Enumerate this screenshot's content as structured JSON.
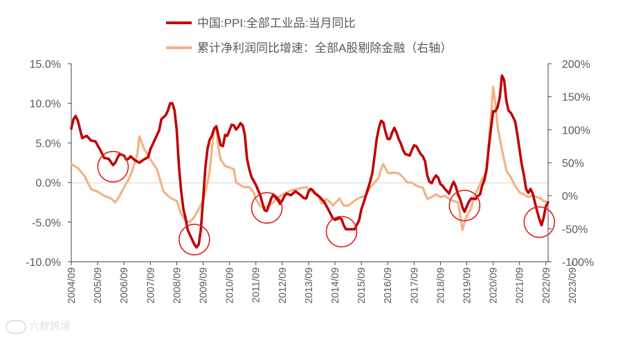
{
  "chart_data": {
    "type": "line",
    "series": [
      {
        "name": "中国:PPI:全部工业品:当月同比",
        "axis": "left",
        "color": "#c00000",
        "points": [
          [
            0,
            6.8
          ],
          [
            1,
            8.0
          ],
          [
            2,
            8.4
          ],
          [
            3,
            7.8
          ],
          [
            5,
            5.6
          ],
          [
            7,
            5.9
          ],
          [
            9,
            5.3
          ],
          [
            11,
            5.2
          ],
          [
            13,
            4.2
          ],
          [
            15,
            3.1
          ],
          [
            17,
            3.0
          ],
          [
            19,
            2.2
          ],
          [
            20,
            2.5
          ],
          [
            21,
            3.1
          ],
          [
            22,
            3.6
          ],
          [
            24,
            3.4
          ],
          [
            25,
            2.9
          ],
          [
            26,
            3.0
          ],
          [
            27,
            3.3
          ],
          [
            29,
            2.8
          ],
          [
            31,
            2.5
          ],
          [
            33,
            2.9
          ],
          [
            35,
            3.2
          ],
          [
            36,
            4.2
          ],
          [
            38,
            5.4
          ],
          [
            40,
            6.6
          ],
          [
            41,
            8.0
          ],
          [
            43,
            8.5
          ],
          [
            44,
            9.1
          ],
          [
            45,
            10.0
          ],
          [
            46,
            10.0
          ],
          [
            47,
            9.1
          ],
          [
            48,
            6.6
          ],
          [
            49,
            2.0
          ],
          [
            50,
            -1.1
          ],
          [
            51,
            -3.3
          ],
          [
            52,
            -4.5
          ],
          [
            53,
            -6.0
          ],
          [
            55,
            -7.2
          ],
          [
            56,
            -7.8
          ],
          [
            57,
            -8.2
          ],
          [
            58,
            -7.8
          ],
          [
            59,
            -5.9
          ],
          [
            60,
            -2.1
          ],
          [
            61,
            1.8
          ],
          [
            62,
            4.3
          ],
          [
            63,
            5.4
          ],
          [
            64,
            5.9
          ],
          [
            65,
            6.8
          ],
          [
            66,
            7.1
          ],
          [
            67,
            5.9
          ],
          [
            68,
            4.7
          ],
          [
            69,
            4.6
          ],
          [
            70,
            6.0
          ],
          [
            71,
            5.9
          ],
          [
            72,
            6.6
          ],
          [
            73,
            7.3
          ],
          [
            74,
            7.2
          ],
          [
            75,
            6.7
          ],
          [
            76,
            7.0
          ],
          [
            77,
            7.5
          ],
          [
            78,
            7.2
          ],
          [
            79,
            6.0
          ],
          [
            80,
            3.0
          ],
          [
            81,
            1.7
          ],
          [
            82,
            0.7
          ],
          [
            84,
            -0.3
          ],
          [
            86,
            -1.6
          ],
          [
            87,
            -2.6
          ],
          [
            88,
            -3.5
          ],
          [
            89,
            -3.6
          ],
          [
            90,
            -2.8
          ],
          [
            91,
            -2.0
          ],
          [
            92,
            -1.5
          ],
          [
            93,
            -1.9
          ],
          [
            94,
            -2.2
          ],
          [
            95,
            -2.7
          ],
          [
            96,
            -2.3
          ],
          [
            97,
            -1.7
          ],
          [
            98,
            -1.4
          ],
          [
            100,
            -1.6
          ],
          [
            102,
            -1.1
          ],
          [
            104,
            -1.5
          ],
          [
            106,
            -2.0
          ],
          [
            107,
            -2.0
          ],
          [
            108,
            -1.1
          ],
          [
            109,
            -0.8
          ],
          [
            110,
            -1.0
          ],
          [
            111,
            -1.4
          ],
          [
            113,
            -1.8
          ],
          [
            115,
            -2.4
          ],
          [
            117,
            -3.4
          ],
          [
            119,
            -4.5
          ],
          [
            120,
            -4.7
          ],
          [
            121,
            -4.6
          ],
          [
            122,
            -4.5
          ],
          [
            123,
            -4.6
          ],
          [
            124,
            -5.4
          ],
          [
            125,
            -5.9
          ],
          [
            126,
            -5.9
          ],
          [
            128,
            -5.9
          ],
          [
            129,
            -5.9
          ],
          [
            130,
            -5.3
          ],
          [
            131,
            -4.8
          ],
          [
            132,
            -3.4
          ],
          [
            133,
            -2.6
          ],
          [
            134,
            -1.7
          ],
          [
            135,
            -0.8
          ],
          [
            136,
            0.1
          ],
          [
            137,
            1.2
          ],
          [
            138,
            3.3
          ],
          [
            139,
            5.5
          ],
          [
            140,
            6.9
          ],
          [
            141,
            7.8
          ],
          [
            142,
            7.6
          ],
          [
            143,
            6.4
          ],
          [
            144,
            5.5
          ],
          [
            145,
            5.5
          ],
          [
            146,
            6.3
          ],
          [
            147,
            6.9
          ],
          [
            148,
            6.3
          ],
          [
            149,
            5.5
          ],
          [
            150,
            4.9
          ],
          [
            151,
            4.1
          ],
          [
            152,
            3.6
          ],
          [
            154,
            3.4
          ],
          [
            155,
            4.1
          ],
          [
            156,
            4.7
          ],
          [
            157,
            4.6
          ],
          [
            158,
            4.1
          ],
          [
            159,
            3.6
          ],
          [
            160,
            3.3
          ],
          [
            161,
            2.7
          ],
          [
            162,
            0.9
          ],
          [
            163,
            0.1
          ],
          [
            164,
            -0.1
          ],
          [
            165,
            0.5
          ],
          [
            166,
            0.9
          ],
          [
            167,
            0.6
          ],
          [
            168,
            -0.2
          ],
          [
            169,
            -0.4
          ],
          [
            170,
            -0.8
          ],
          [
            172,
            -1.4
          ],
          [
            173,
            -0.5
          ],
          [
            174,
            0.1
          ],
          [
            175,
            -0.5
          ],
          [
            176,
            -1.5
          ],
          [
            177,
            -2.1
          ],
          [
            178,
            -3.1
          ],
          [
            179,
            -3.7
          ],
          [
            180,
            -3.0
          ],
          [
            181,
            -2.4
          ],
          [
            182,
            -2.0
          ],
          [
            184,
            -2.1
          ],
          [
            185,
            -1.7
          ],
          [
            186,
            -1.5
          ],
          [
            187,
            -0.4
          ],
          [
            188,
            0.3
          ],
          [
            189,
            1.7
          ],
          [
            190,
            4.4
          ],
          [
            191,
            6.8
          ],
          [
            192,
            9.0
          ],
          [
            193,
            9.0
          ],
          [
            194,
            9.5
          ],
          [
            195,
            10.7
          ],
          [
            196,
            13.5
          ],
          [
            197,
            12.9
          ],
          [
            198,
            10.3
          ],
          [
            199,
            9.1
          ],
          [
            200,
            8.8
          ],
          [
            201,
            8.3
          ],
          [
            202,
            7.7
          ],
          [
            203,
            6.1
          ],
          [
            204,
            4.2
          ],
          [
            205,
            2.3
          ],
          [
            206,
            0.9
          ],
          [
            207,
            -0.8
          ],
          [
            208,
            -1.3
          ],
          [
            209,
            -0.8
          ],
          [
            210,
            -1.4
          ],
          [
            211,
            -2.5
          ],
          [
            212,
            -3.6
          ],
          [
            213,
            -4.6
          ],
          [
            214,
            -5.4
          ],
          [
            215,
            -4.4
          ],
          [
            216,
            -3.0
          ],
          [
            217,
            -2.5
          ]
        ]
      },
      {
        "name": "累计净利润同比增速：全部A股剔除金融（右轴）",
        "axis": "right",
        "color": "#f4b183",
        "points": [
          [
            0,
            48
          ],
          [
            3,
            42
          ],
          [
            6,
            30
          ],
          [
            9,
            10
          ],
          [
            12,
            6
          ],
          [
            15,
            0
          ],
          [
            18,
            -4
          ],
          [
            20,
            -10
          ],
          [
            22,
            0
          ],
          [
            24,
            13
          ],
          [
            26,
            24
          ],
          [
            28,
            40
          ],
          [
            30,
            62
          ],
          [
            31,
            90
          ],
          [
            33,
            72
          ],
          [
            36,
            55
          ],
          [
            39,
            40
          ],
          [
            42,
            6
          ],
          [
            45,
            -3
          ],
          [
            48,
            -8
          ],
          [
            50,
            -28
          ],
          [
            52,
            -38
          ],
          [
            54,
            -40
          ],
          [
            56,
            -32
          ],
          [
            58,
            -20
          ],
          [
            60,
            -8
          ],
          [
            62,
            20
          ],
          [
            63,
            38
          ],
          [
            64,
            70
          ],
          [
            65,
            100
          ],
          [
            66,
            103
          ],
          [
            67,
            72
          ],
          [
            68,
            55
          ],
          [
            70,
            45
          ],
          [
            72,
            43
          ],
          [
            74,
            40
          ],
          [
            75,
            20
          ],
          [
            77,
            16
          ],
          [
            79,
            13
          ],
          [
            81,
            13
          ],
          [
            83,
            5
          ],
          [
            84,
            -5
          ],
          [
            86,
            -16
          ],
          [
            88,
            -18
          ],
          [
            90,
            -15
          ],
          [
            92,
            -10
          ],
          [
            94,
            -3
          ],
          [
            96,
            2
          ],
          [
            98,
            5
          ],
          [
            100,
            8
          ],
          [
            103,
            10
          ],
          [
            105,
            12
          ],
          [
            107,
            13
          ],
          [
            108,
            10
          ],
          [
            110,
            5
          ],
          [
            112,
            3
          ],
          [
            113,
            -5
          ],
          [
            114,
            -12
          ],
          [
            116,
            -5
          ],
          [
            118,
            -10
          ],
          [
            119,
            -15
          ],
          [
            121,
            -8
          ],
          [
            122,
            -4
          ],
          [
            124,
            -15
          ],
          [
            126,
            -15
          ],
          [
            128,
            -10
          ],
          [
            130,
            -5
          ],
          [
            132,
            -2
          ],
          [
            134,
            0
          ],
          [
            136,
            12
          ],
          [
            138,
            20
          ],
          [
            140,
            28
          ],
          [
            141,
            40
          ],
          [
            142,
            48
          ],
          [
            144,
            35
          ],
          [
            145,
            34
          ],
          [
            147,
            35
          ],
          [
            149,
            34
          ],
          [
            151,
            28
          ],
          [
            153,
            20
          ],
          [
            155,
            20
          ],
          [
            157,
            15
          ],
          [
            160,
            12
          ],
          [
            162,
            -5
          ],
          [
            164,
            -2
          ],
          [
            166,
            2
          ],
          [
            168,
            -2
          ],
          [
            170,
            0
          ],
          [
            172,
            -5
          ],
          [
            174,
            -8
          ],
          [
            176,
            -10
          ],
          [
            177,
            -30
          ],
          [
            178,
            -52
          ],
          [
            179,
            -40
          ],
          [
            180,
            -30
          ],
          [
            182,
            -20
          ],
          [
            183,
            -5
          ],
          [
            185,
            10
          ],
          [
            187,
            25
          ],
          [
            189,
            35
          ],
          [
            190,
            80
          ],
          [
            191,
            120
          ],
          [
            192,
            165
          ],
          [
            193,
            140
          ],
          [
            194,
            105
          ],
          [
            196,
            70
          ],
          [
            198,
            38
          ],
          [
            200,
            28
          ],
          [
            202,
            15
          ],
          [
            204,
            5
          ],
          [
            206,
            2
          ],
          [
            208,
            -2
          ],
          [
            210,
            0
          ],
          [
            212,
            -2
          ],
          [
            214,
            -5
          ],
          [
            215,
            -8
          ],
          [
            217,
            -10
          ]
        ]
      }
    ],
    "left_axis": {
      "ylim": [
        -10,
        15
      ],
      "ticks": [
        15,
        10,
        5,
        0,
        -5,
        -10
      ],
      "tick_labels": [
        "15.0%",
        "10.0%",
        "5.0%",
        "0.0%",
        "-5.0%",
        "-10.0%"
      ]
    },
    "right_axis": {
      "ylim": [
        -100,
        200
      ],
      "ticks": [
        200,
        150,
        100,
        50,
        0,
        -50,
        -100
      ],
      "tick_labels": [
        "200%",
        "150%",
        "100%",
        "50%",
        "0%",
        "-50%",
        "-100%"
      ]
    },
    "x_axis": {
      "start": "2004/09",
      "months": 217,
      "tick_labels": [
        "2004/09",
        "2005/09",
        "2006/09",
        "2007/09",
        "2008/09",
        "2009/09",
        "2010/09",
        "2011/09",
        "2012/09",
        "2013/09",
        "2014/09",
        "2015/09",
        "2016/09",
        "2017/09",
        "2018/09",
        "2019/09",
        "2020/09",
        "2021/09",
        "2022/09",
        "2023/09"
      ]
    },
    "annotations": {
      "type": "circle",
      "color": "#e02020",
      "marks": [
        {
          "month": 19,
          "value": 2.0
        },
        {
          "month": 56,
          "value": -7.2
        },
        {
          "month": 89,
          "value": -3.2
        },
        {
          "month": 123,
          "value": -6.2
        },
        {
          "month": 179,
          "value": -2.9
        },
        {
          "month": 213,
          "value": -5.0
        }
      ]
    },
    "legend": {
      "placement": "top-center"
    },
    "grid": false
  },
  "watermark": "六数跨境"
}
